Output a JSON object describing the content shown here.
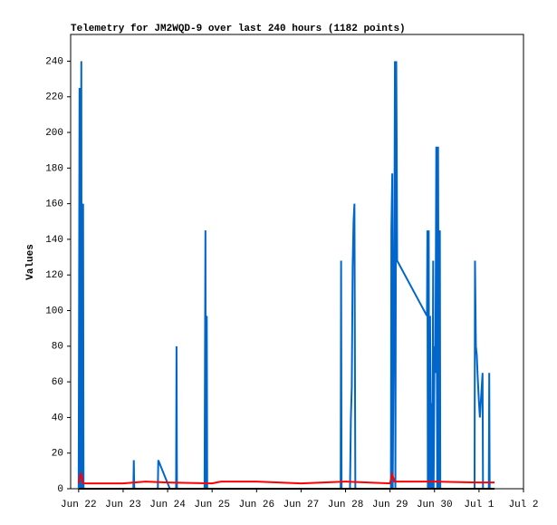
{
  "chart_data": {
    "type": "line",
    "title": "Telemetry for JM2WQD-9 over last 240 hours (1182 points)",
    "ylabel": "Values",
    "xlim": [
      -0.18,
      10
    ],
    "ylim": [
      0,
      255
    ],
    "xticks": [
      {
        "value": 0,
        "label": "Jun 22"
      },
      {
        "value": 1,
        "label": "Jun 23"
      },
      {
        "value": 2,
        "label": "Jun 24"
      },
      {
        "value": 3,
        "label": "Jun 25"
      },
      {
        "value": 4,
        "label": "Jun 26"
      },
      {
        "value": 5,
        "label": "Jun 27"
      },
      {
        "value": 6,
        "label": "Jun 28"
      },
      {
        "value": 7,
        "label": "Jun 29"
      },
      {
        "value": 8,
        "label": "Jun 30"
      },
      {
        "value": 9,
        "label": "Jul 1"
      },
      {
        "value": 10,
        "label": "Jul 2"
      }
    ],
    "yticks": [
      0,
      20,
      40,
      60,
      80,
      100,
      120,
      140,
      160,
      180,
      200,
      220,
      240
    ],
    "grid": false,
    "series": [
      {
        "color": "#0066cc",
        "x": [
          0.0,
          0.02,
          0.03,
          0.06,
          0.07,
          0.1,
          0.11,
          1.23,
          1.24,
          1.25,
          1.78,
          1.79,
          2.05,
          2.19,
          2.2,
          2.21,
          2.83,
          2.84,
          2.85,
          2.86,
          2.88,
          2.89,
          5.89,
          5.9,
          5.91,
          6.1,
          6.12,
          6.14,
          6.16,
          6.18,
          6.2,
          6.21,
          6.22,
          7.02,
          7.03,
          7.05,
          7.06,
          7.1,
          7.11,
          7.12,
          7.14,
          7.15,
          7.16,
          7.83,
          7.84,
          7.85,
          7.87,
          7.88,
          7.9,
          7.92,
          7.94,
          7.95,
          7.97,
          7.98,
          8.0,
          8.02,
          8.04,
          8.06,
          8.08,
          8.1,
          8.12,
          8.13,
          8.9,
          8.91,
          8.93,
          8.95,
          8.97,
          9.0,
          9.02,
          9.08,
          9.09,
          9.22,
          9.23,
          9.24
        ],
        "values": [
          0,
          225,
          0,
          240,
          0,
          160,
          0,
          0,
          16,
          0,
          0,
          16,
          0,
          0,
          80,
          0,
          0,
          72,
          145,
          0,
          97,
          0,
          0,
          128,
          0,
          0,
          40,
          57,
          125,
          150,
          160,
          80,
          0,
          0,
          145,
          177,
          0,
          160,
          240,
          0,
          240,
          192,
          128,
          97,
          145,
          0,
          145,
          0,
          97,
          0,
          48,
          0,
          128,
          0,
          80,
          65,
          192,
          0,
          192,
          0,
          145,
          0,
          0,
          128,
          80,
          75,
          63,
          48,
          40,
          65,
          0,
          0,
          65,
          0
        ]
      },
      {
        "color": "#ff0000",
        "x": [
          0.0,
          0.05,
          0.1,
          1.0,
          1.5,
          2.0,
          3.0,
          3.2,
          4.0,
          5.0,
          6.0,
          7.0,
          7.05,
          7.1,
          8.0,
          9.0,
          9.35
        ],
        "values": [
          3,
          9,
          3,
          3,
          4,
          3.5,
          3,
          4,
          4,
          3,
          4,
          3,
          8,
          4,
          4,
          3.5,
          3.5
        ]
      },
      {
        "color": "#000000",
        "x": [
          0.0,
          9.35
        ],
        "values": [
          0,
          0
        ]
      }
    ]
  }
}
